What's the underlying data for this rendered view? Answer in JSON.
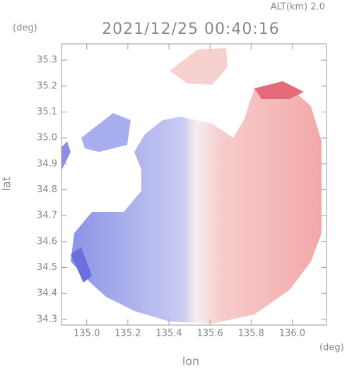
{
  "chart_data": {
    "type": "radar-map",
    "title": "2021/12/25 00:40:16",
    "subtitle": "ALT(km) 2.0",
    "x_label": "lon",
    "y_label": "lat",
    "x_unit": "(deg)",
    "y_unit": "(deg)",
    "xlim": [
      134.877,
      136.167
    ],
    "ylim": [
      34.278,
      35.363
    ],
    "xticks": [
      {
        "value": 135.0,
        "label": "135.0"
      },
      {
        "value": 135.2,
        "label": "135.2"
      },
      {
        "value": 135.4,
        "label": "135.4"
      },
      {
        "value": 135.6,
        "label": "135.6"
      },
      {
        "value": 135.8,
        "label": "135.8"
      },
      {
        "value": 136.0,
        "label": "136.0"
      }
    ],
    "yticks": [
      {
        "value": 34.3,
        "label": "34.3"
      },
      34.4,
      34.5,
      34.6,
      34.7,
      34.8,
      34.9,
      {
        "value": 35.0,
        "label": "35.0"
      },
      35.1,
      35.2,
      35.3
    ]
  }
}
